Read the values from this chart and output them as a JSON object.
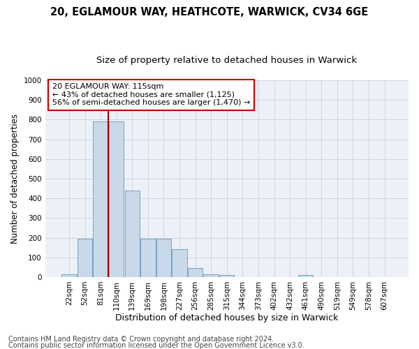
{
  "title1": "20, EGLAMOUR WAY, HEATHCOTE, WARWICK, CV34 6GE",
  "title2": "Size of property relative to detached houses in Warwick",
  "xlabel": "Distribution of detached houses by size in Warwick",
  "ylabel": "Number of detached properties",
  "bin_labels": [
    "22sqm",
    "52sqm",
    "81sqm",
    "110sqm",
    "139sqm",
    "169sqm",
    "198sqm",
    "227sqm",
    "256sqm",
    "285sqm",
    "315sqm",
    "344sqm",
    "373sqm",
    "402sqm",
    "432sqm",
    "461sqm",
    "490sqm",
    "519sqm",
    "549sqm",
    "578sqm",
    "607sqm"
  ],
  "bar_values": [
    15,
    195,
    790,
    790,
    440,
    195,
    195,
    140,
    47,
    15,
    10,
    0,
    0,
    0,
    0,
    10,
    0,
    0,
    0,
    0,
    0
  ],
  "bar_color": "#c9d9ea",
  "bar_edge_color": "#6699bb",
  "vline_color": "#aa0000",
  "ylim": [
    0,
    1000
  ],
  "yticks": [
    0,
    100,
    200,
    300,
    400,
    500,
    600,
    700,
    800,
    900,
    1000
  ],
  "annotation_text": "20 EGLAMOUR WAY: 115sqm\n← 43% of detached houses are smaller (1,125)\n56% of semi-detached houses are larger (1,470) →",
  "annotation_box_color": "#ffffff",
  "annotation_box_edge": "#cc0000",
  "footer1": "Contains HM Land Registry data © Crown copyright and database right 2024.",
  "footer2": "Contains public sector information licensed under the Open Government Licence v3.0.",
  "title1_fontsize": 10.5,
  "title2_fontsize": 9.5,
  "xlabel_fontsize": 9,
  "ylabel_fontsize": 8.5,
  "tick_fontsize": 7.5,
  "ann_fontsize": 8,
  "footer_fontsize": 7,
  "grid_color": "#c8d0dc",
  "bg_color": "#edf1f7"
}
